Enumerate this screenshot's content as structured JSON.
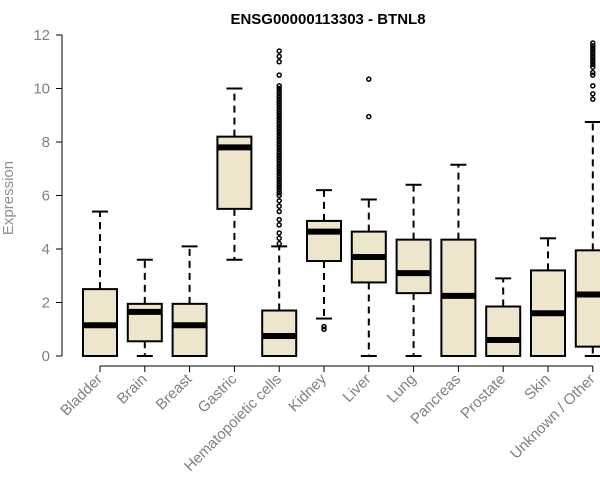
{
  "chart_data": {
    "type": "box",
    "title": "ENSG00000113303 - BTNL8",
    "xlabel": "",
    "ylabel": "Expression",
    "ylim": [
      0,
      12
    ],
    "yticks": [
      0,
      2,
      4,
      6,
      8,
      10,
      12
    ],
    "grid": false,
    "legend": "none",
    "colors": {
      "box_fill": "#ede6cd",
      "stroke": "#000000",
      "axis_text": "#808080",
      "title": "#000000"
    },
    "categories": [
      "Bladder",
      "Brain",
      "Breast",
      "Gastric",
      "Hematopoietic cells",
      "Kidney",
      "Liver",
      "Lung",
      "Pancreas",
      "Prostate",
      "Skin",
      "Unknown / Other"
    ],
    "boxes": [
      {
        "category": "Bladder",
        "whisker_low": 0,
        "q1": 0,
        "median": 1.15,
        "q3": 2.5,
        "whisker_high": 5.4,
        "outliers": []
      },
      {
        "category": "Brain",
        "whisker_low": 0,
        "q1": 0.55,
        "median": 1.65,
        "q3": 1.95,
        "whisker_high": 3.6,
        "outliers": []
      },
      {
        "category": "Breast",
        "whisker_low": 0,
        "q1": 0,
        "median": 1.15,
        "q3": 1.95,
        "whisker_high": 4.1,
        "outliers": []
      },
      {
        "category": "Gastric",
        "whisker_low": 3.6,
        "q1": 5.5,
        "median": 7.8,
        "q3": 8.2,
        "whisker_high": 10.0,
        "outliers": []
      },
      {
        "category": "Hematopoietic cells",
        "whisker_low": 0,
        "q1": 0,
        "median": 0.75,
        "q3": 1.7,
        "whisker_high": 4.1,
        "outliers": [
          4.2,
          4.4,
          4.6,
          4.9,
          5.1,
          5.4,
          5.6,
          5.8,
          6.0,
          6.1,
          6.2,
          6.3,
          6.4,
          6.5,
          6.6,
          6.7,
          6.8,
          6.9,
          7.0,
          7.1,
          7.2,
          7.3,
          7.4,
          7.5,
          7.6,
          7.7,
          7.8,
          7.9,
          8.0,
          8.1,
          8.2,
          8.3,
          8.4,
          8.5,
          8.6,
          8.7,
          8.8,
          8.9,
          9.0,
          9.1,
          9.2,
          9.3,
          9.4,
          9.5,
          9.6,
          9.7,
          9.8,
          9.9,
          10.0,
          10.1,
          10.5,
          11.0,
          11.2,
          11.4
        ]
      },
      {
        "category": "Kidney",
        "whisker_low": 1.4,
        "q1": 3.55,
        "median": 4.65,
        "q3": 5.05,
        "whisker_high": 6.2,
        "outliers": [
          1.0,
          1.1
        ]
      },
      {
        "category": "Liver",
        "whisker_low": 0,
        "q1": 2.75,
        "median": 3.7,
        "q3": 4.65,
        "whisker_high": 5.85,
        "outliers": [
          8.95,
          10.35
        ]
      },
      {
        "category": "Lung",
        "whisker_low": 0,
        "q1": 2.35,
        "median": 3.1,
        "q3": 4.35,
        "whisker_high": 6.4,
        "outliers": []
      },
      {
        "category": "Pancreas",
        "whisker_low": 0,
        "q1": 0,
        "median": 2.25,
        "q3": 4.35,
        "whisker_high": 7.15,
        "outliers": []
      },
      {
        "category": "Prostate",
        "whisker_low": 0,
        "q1": 0,
        "median": 0.6,
        "q3": 1.85,
        "whisker_high": 2.9,
        "outliers": []
      },
      {
        "category": "Skin",
        "whisker_low": 0,
        "q1": 0,
        "median": 1.6,
        "q3": 3.2,
        "whisker_high": 4.4,
        "outliers": []
      },
      {
        "category": "Unknown / Other",
        "whisker_low": 0,
        "q1": 0.35,
        "median": 2.3,
        "q3": 3.95,
        "whisker_high": 8.75,
        "outliers": [
          9.6,
          9.8,
          10.1,
          10.5,
          10.6,
          10.8,
          10.9,
          11.0,
          11.1,
          11.2,
          11.3,
          11.4,
          11.5,
          11.6,
          11.7
        ]
      }
    ]
  }
}
